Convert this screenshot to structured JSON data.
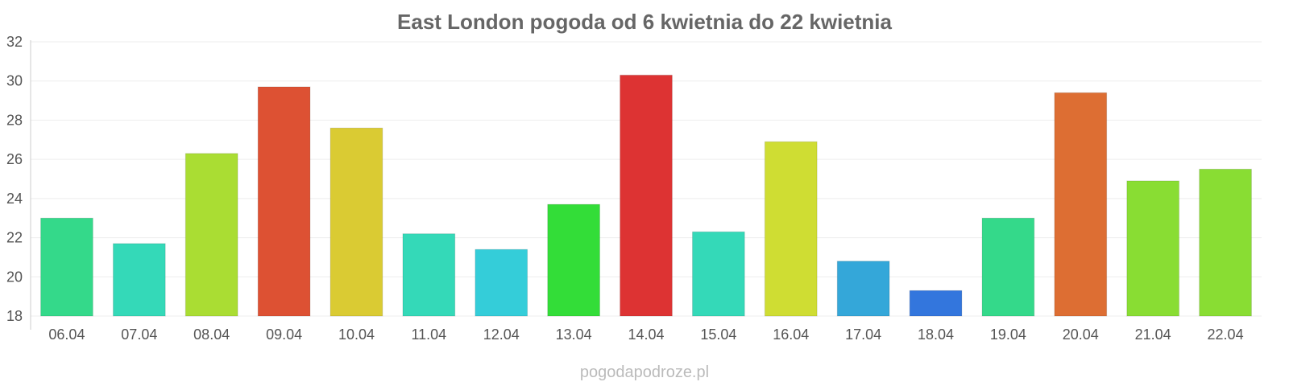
{
  "chart_data": {
    "type": "bar",
    "title": "East London pogoda od 6 kwietnia do 22 kwietnia",
    "xlabel": "",
    "ylabel": "",
    "ylim": [
      18,
      32
    ],
    "yticks": [
      18,
      20,
      22,
      24,
      26,
      28,
      30,
      32
    ],
    "ytick_labels": [
      "18",
      "20",
      "22",
      "24",
      "26",
      "28",
      "30",
      "32"
    ],
    "grid": true,
    "categories": [
      "06.04",
      "07.04",
      "08.04",
      "09.04",
      "10.04",
      "11.04",
      "12.04",
      "13.04",
      "14.04",
      "15.04",
      "16.04",
      "17.04",
      "18.04",
      "19.04",
      "20.04",
      "21.04",
      "22.04"
    ],
    "values": [
      23.0,
      21.7,
      26.3,
      29.7,
      27.6,
      22.2,
      21.4,
      23.7,
      30.3,
      22.3,
      26.9,
      20.8,
      19.3,
      23.0,
      29.4,
      24.9,
      25.5
    ],
    "colors": [
      "#34d98a",
      "#34d9b8",
      "#aadd33",
      "#dd5133",
      "#dacb33",
      "#34d9b8",
      "#34cdd9",
      "#33dd38",
      "#dd3333",
      "#34d9b8",
      "#cfdd33",
      "#34a7d9",
      "#3376dd",
      "#34d98a",
      "#dd6e33",
      "#89dd33",
      "#89dd33"
    ]
  },
  "watermark": "pogodapodroze.pl"
}
